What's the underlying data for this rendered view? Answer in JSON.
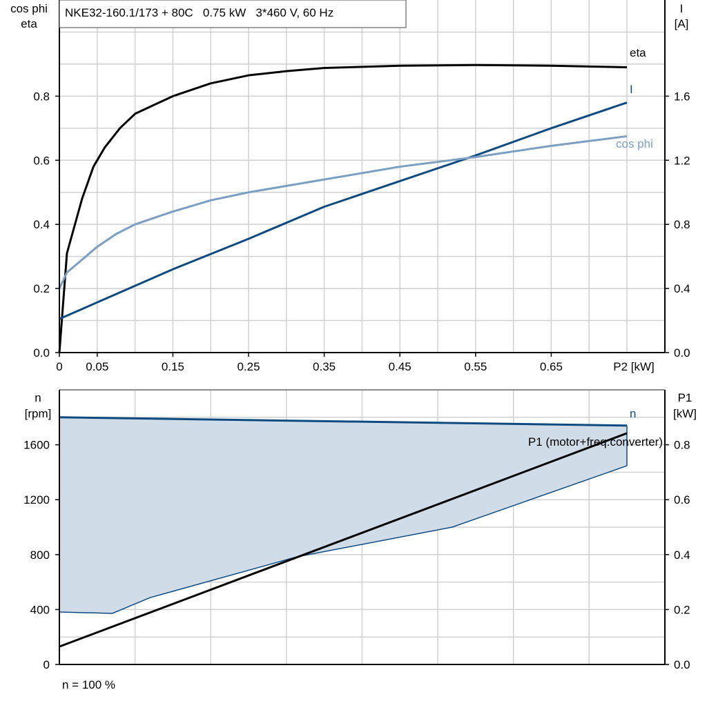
{
  "chart_data": [
    {
      "type": "line",
      "title": "NKE32-160.1/173 + 80C   0.75 kW   3*460 V, 60 Hz",
      "xlabel": "P2 [kW]",
      "ylabel_left": [
        "cos phi",
        "eta"
      ],
      "ylabel_right": [
        "I",
        "[A]"
      ],
      "xlim": [
        0,
        0.8
      ],
      "ylim_left": [
        0,
        1.1
      ],
      "ylim_right": [
        0,
        2.2
      ],
      "x_ticks": [
        "0",
        "0.05",
        "0.15",
        "0.25",
        "0.35",
        "0.45",
        "0.55",
        "0.65"
      ],
      "x_tick_values": [
        0,
        0.05,
        0.15,
        0.25,
        0.35,
        0.45,
        0.55,
        0.65
      ],
      "y_ticks_left": [
        "0.0",
        "0.2",
        "0.4",
        "0.6",
        "0.8"
      ],
      "y_ticks_right": [
        "0.0",
        "0.4",
        "0.8",
        "1.2",
        "1.6"
      ],
      "grid": true,
      "series": [
        {
          "name": "eta",
          "axis": "left",
          "color": "#000000",
          "x": [
            0,
            0.01,
            0.03,
            0.045,
            0.06,
            0.08,
            0.1,
            0.15,
            0.2,
            0.25,
            0.3,
            0.35,
            0.45,
            0.55,
            0.65,
            0.75
          ],
          "y": [
            0,
            0.31,
            0.48,
            0.58,
            0.64,
            0.7,
            0.745,
            0.8,
            0.84,
            0.865,
            0.878,
            0.888,
            0.895,
            0.897,
            0.895,
            0.89
          ]
        },
        {
          "name": "I",
          "axis": "right",
          "color": "#0d4a80",
          "x": [
            0,
            0.15,
            0.25,
            0.35,
            0.45,
            0.55,
            0.65,
            0.75
          ],
          "y": [
            0.21,
            0.52,
            0.71,
            0.91,
            1.07,
            1.23,
            1.4,
            1.56
          ]
        },
        {
          "name": "cos phi",
          "axis": "left",
          "color": "#7a9fc2",
          "x": [
            0,
            0.01,
            0.03,
            0.05,
            0.075,
            0.1,
            0.15,
            0.2,
            0.25,
            0.35,
            0.45,
            0.55,
            0.65,
            0.75
          ],
          "y": [
            0.2,
            0.25,
            0.29,
            0.33,
            0.37,
            0.4,
            0.44,
            0.475,
            0.5,
            0.54,
            0.58,
            0.61,
            0.645,
            0.675
          ]
        }
      ]
    },
    {
      "type": "line",
      "xlim": [
        0,
        0.8
      ],
      "ylabel_left": [
        "n",
        "[rpm]"
      ],
      "ylabel_right": [
        "P1",
        "[kW]"
      ],
      "ylim_left": [
        0,
        2000
      ],
      "ylim_right": [
        0,
        1.0
      ],
      "y_ticks_left": [
        "0",
        "400",
        "800",
        "1200",
        "1600"
      ],
      "y_ticks_right": [
        "0.0",
        "0.2",
        "0.4",
        "0.6",
        "0.8"
      ],
      "grid": true,
      "footnote": "n = 100 %",
      "fill_color": "#d0dce8",
      "series": [
        {
          "name": "n",
          "axis": "left",
          "color": "#0d4a80",
          "x": [
            0,
            0.75
          ],
          "y": [
            1800,
            1740
          ]
        },
        {
          "name": "n_lower",
          "axis": "left",
          "color": "#0d4a80",
          "x": [
            0,
            0.07,
            0.12,
            0.314,
            0.519,
            0.75
          ],
          "y": [
            382,
            372,
            487,
            784,
            1000,
            1447
          ]
        },
        {
          "name": "P1 (motor+freq.converter)",
          "axis": "right",
          "color": "#000000",
          "x": [
            0,
            0.75
          ],
          "y": [
            0.065,
            0.842
          ]
        }
      ]
    }
  ]
}
